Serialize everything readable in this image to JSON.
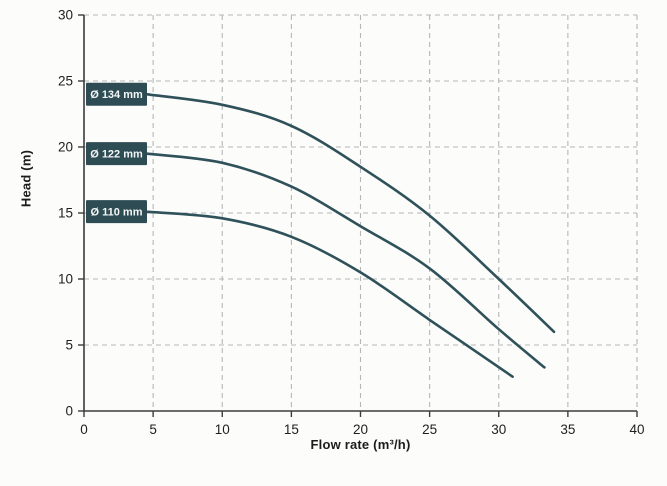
{
  "chart_data": {
    "type": "line",
    "title": "",
    "xlabel": "Flow rate (m³/h)",
    "ylabel": "Head (m)",
    "xlim": [
      0,
      40
    ],
    "ylim": [
      0,
      30
    ],
    "xticks": [
      0,
      5,
      10,
      15,
      20,
      25,
      30,
      35,
      40
    ],
    "yticks": [
      0,
      5,
      10,
      15,
      20,
      25,
      30
    ],
    "grid": "dashed",
    "legend_position": "on-curve-left-badges",
    "series": [
      {
        "name": "Ø 134 mm",
        "points": [
          [
            4.5,
            24.0
          ],
          [
            10,
            23.2
          ],
          [
            15,
            21.6
          ],
          [
            20,
            18.5
          ],
          [
            25,
            14.8
          ],
          [
            30,
            10.0
          ],
          [
            34,
            6.0
          ]
        ]
      },
      {
        "name": "Ø 122 mm",
        "points": [
          [
            4.5,
            19.5
          ],
          [
            10,
            18.8
          ],
          [
            15,
            17.0
          ],
          [
            20,
            14.0
          ],
          [
            25,
            10.8
          ],
          [
            30,
            6.2
          ],
          [
            33.3,
            3.3
          ]
        ]
      },
      {
        "name": "Ø 110 mm",
        "points": [
          [
            4.5,
            15.1
          ],
          [
            10,
            14.6
          ],
          [
            15,
            13.2
          ],
          [
            20,
            10.5
          ],
          [
            25,
            6.9
          ],
          [
            31,
            2.6
          ]
        ]
      }
    ],
    "colors": {
      "curve": "#2f5159",
      "badge_bg": "#2d4c54",
      "badge_text": "#f5f7f7",
      "grid": "#b4b8b9",
      "axis": "#3c3c3c",
      "tick_text": "#1f1f1f",
      "background": "#fcfcfa"
    }
  }
}
